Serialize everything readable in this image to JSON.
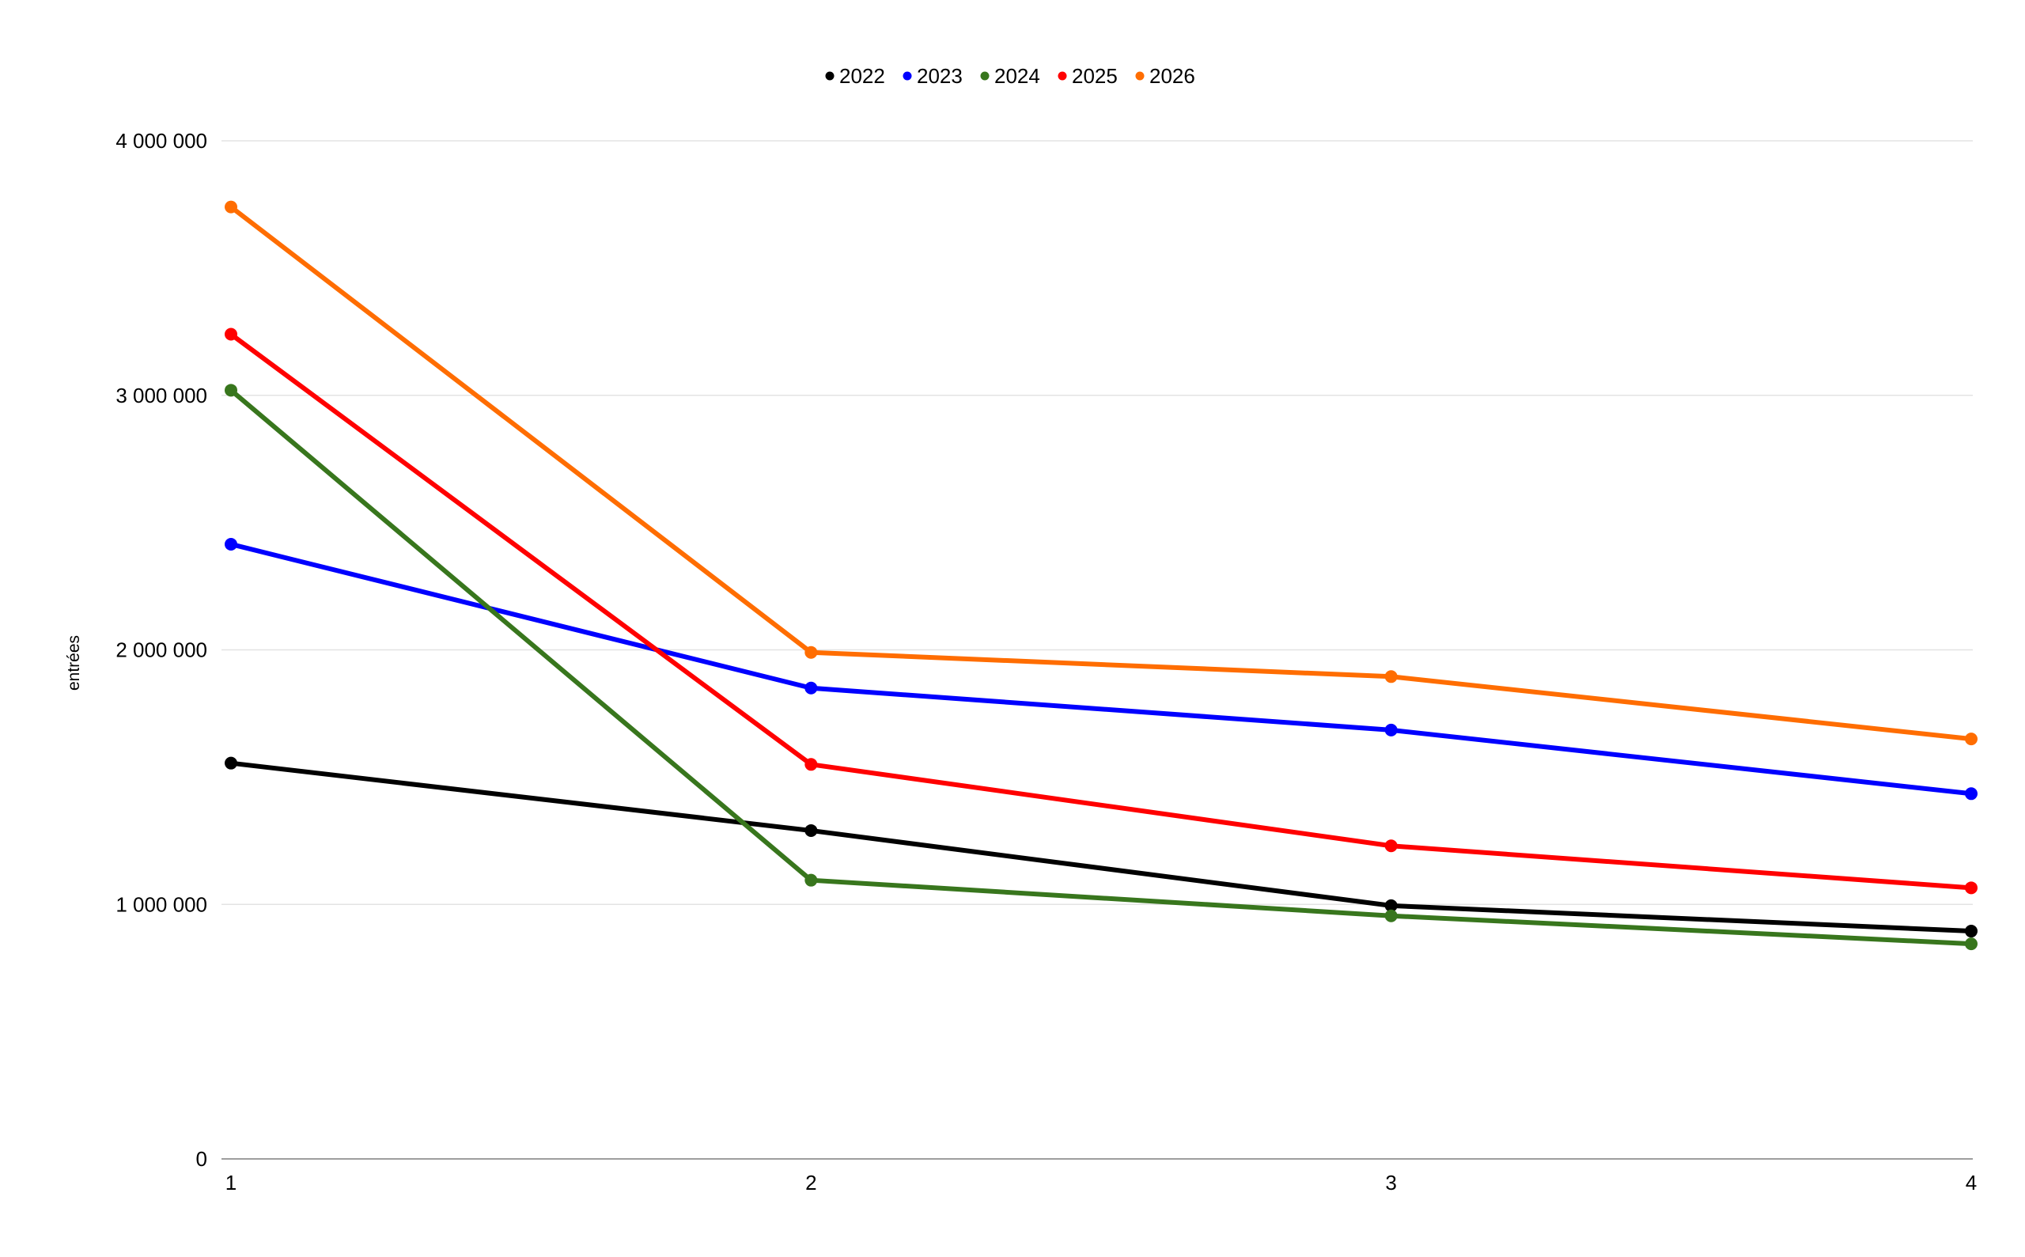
{
  "chart_data": {
    "type": "line",
    "title": "",
    "xlabel": "",
    "ylabel": "entrées",
    "x": [
      1,
      2,
      3,
      4
    ],
    "x_tick_labels": [
      "1",
      "2",
      "3",
      "4"
    ],
    "ylim": [
      0,
      4000000
    ],
    "y_ticks": [
      0,
      1000000,
      2000000,
      3000000,
      4000000
    ],
    "y_tick_labels": [
      "0",
      "1 000 000",
      "2 000 000",
      "3 000 000",
      "4 000 000"
    ],
    "grid": true,
    "legend_position": "top-center",
    "series": [
      {
        "name": "2022",
        "color": "#000000",
        "values": [
          1555000,
          1290000,
          995000,
          895000
        ]
      },
      {
        "name": "2023",
        "color": "#0000ff",
        "values": [
          2415000,
          1850000,
          1685000,
          1435000
        ]
      },
      {
        "name": "2024",
        "color": "#38761d",
        "values": [
          3020000,
          1095000,
          955000,
          845000
        ]
      },
      {
        "name": "2025",
        "color": "#ff0000",
        "values": [
          3240000,
          1550000,
          1230000,
          1065000
        ]
      },
      {
        "name": "2026",
        "color": "#ff6d01",
        "values": [
          3740000,
          1990000,
          1895000,
          1650000
        ]
      }
    ]
  }
}
